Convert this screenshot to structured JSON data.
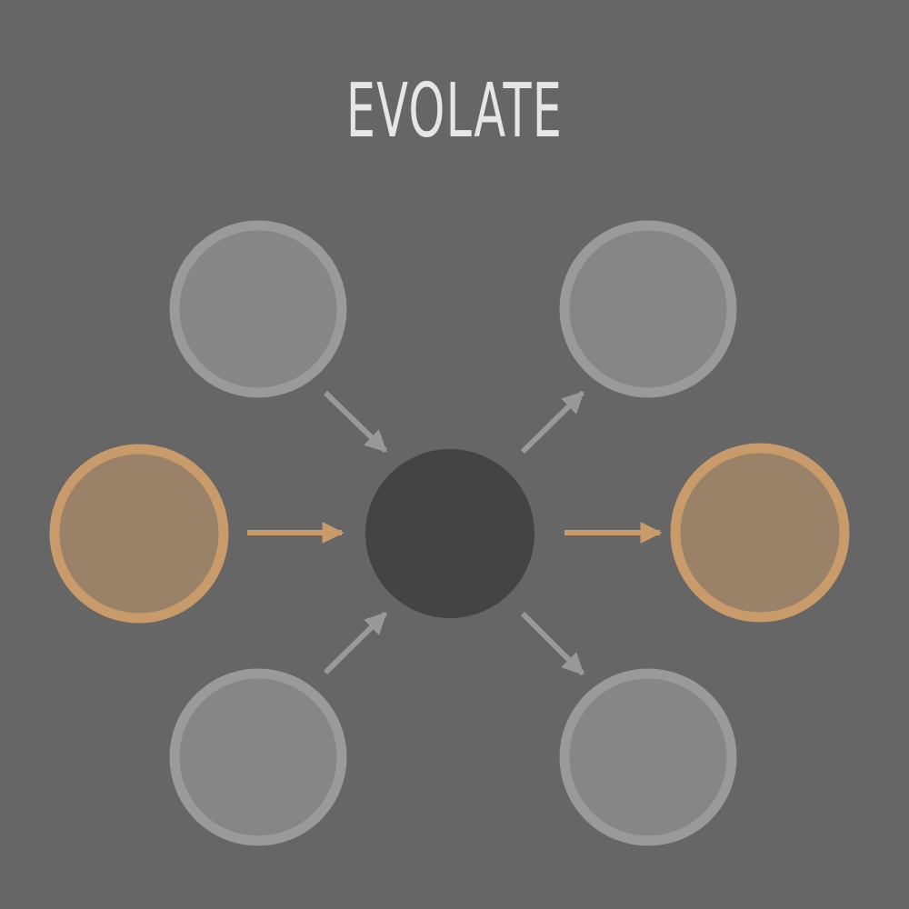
{
  "title": "EVOLATE",
  "colors": {
    "background": "#666666",
    "title": "#e6e6e6",
    "center_fill": "#444444",
    "gray_fill": "#868686",
    "gray_stroke": "#9a9a9a",
    "gray_arrow": "#999999",
    "accent_fill": "#9a8269",
    "accent_stroke": "#c99a6a",
    "accent_arrow": "#c99a6a"
  },
  "nodes": [
    {
      "id": "input-top-left",
      "style": "gray"
    },
    {
      "id": "input-middle-left",
      "style": "accent"
    },
    {
      "id": "input-bottom-left",
      "style": "gray"
    },
    {
      "id": "center",
      "style": "center"
    },
    {
      "id": "output-top-right",
      "style": "gray"
    },
    {
      "id": "output-middle-right",
      "style": "accent"
    },
    {
      "id": "output-bottom-right",
      "style": "gray"
    }
  ],
  "edges": [
    {
      "from": "input-top-left",
      "to": "center",
      "style": "gray"
    },
    {
      "from": "input-middle-left",
      "to": "center",
      "style": "accent"
    },
    {
      "from": "input-bottom-left",
      "to": "center",
      "style": "gray"
    },
    {
      "from": "center",
      "to": "output-top-right",
      "style": "gray"
    },
    {
      "from": "center",
      "to": "output-middle-right",
      "style": "accent"
    },
    {
      "from": "center",
      "to": "output-bottom-right",
      "style": "gray"
    }
  ]
}
